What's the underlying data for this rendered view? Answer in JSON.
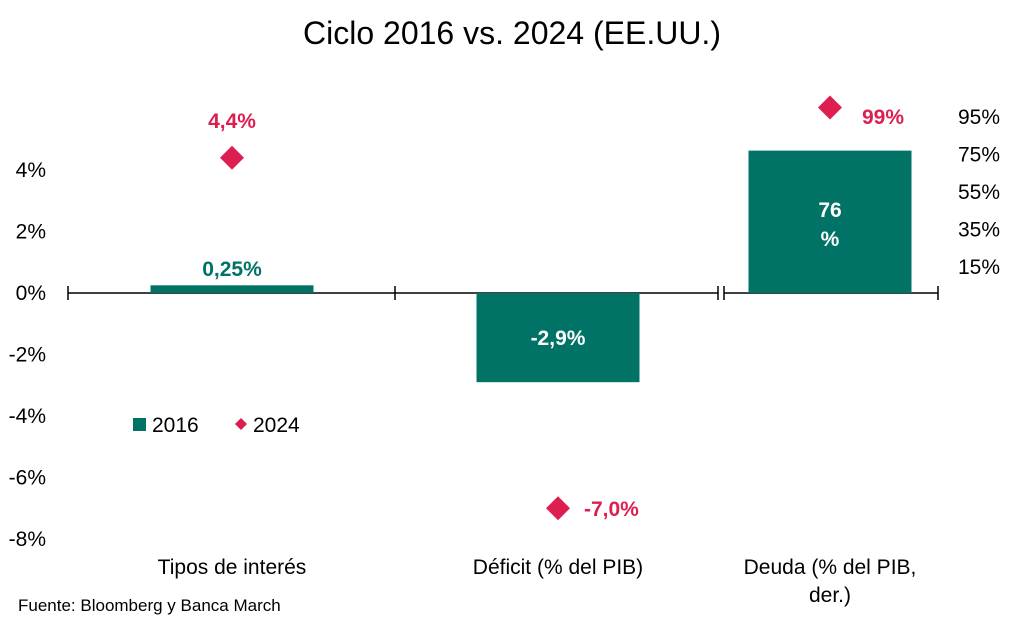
{
  "chart_data": {
    "type": "bar",
    "title": "Ciclo 2016 vs. 2024 (EE.UU.)",
    "categories": [
      [
        "Tipos de interés"
      ],
      [
        "Déficit (% del PIB)"
      ],
      [
        "Deuda (% del PIB,",
        "der.)"
      ]
    ],
    "y_left": {
      "ticks": [
        "4%",
        "2%",
        "0%",
        "-2%",
        "-4%",
        "-6%",
        "-8%"
      ],
      "range": [
        -8,
        4
      ]
    },
    "y_right": {
      "ticks": [
        "95%",
        "75%",
        "55%",
        "35%",
        "15%"
      ],
      "range": [
        15,
        95
      ]
    },
    "series": [
      {
        "name": "2016",
        "kind": "bar",
        "color": "#017366",
        "values": [
          0.25,
          -2.9,
          76
        ],
        "labels": [
          [
            "0,25%"
          ],
          [
            "-2,9%"
          ],
          [
            "76",
            "%"
          ]
        ]
      },
      {
        "name": "2024",
        "kind": "marker",
        "color": "#dc1f50",
        "values": [
          4.4,
          -7.0,
          99
        ],
        "labels": [
          "4,4%",
          "-7,0%",
          "99%"
        ]
      }
    ],
    "legend": [
      "2016",
      "2024"
    ],
    "legend_position": "lower-left inside plot",
    "grid": false
  },
  "source": "Fuente: Bloomberg y Banca March"
}
